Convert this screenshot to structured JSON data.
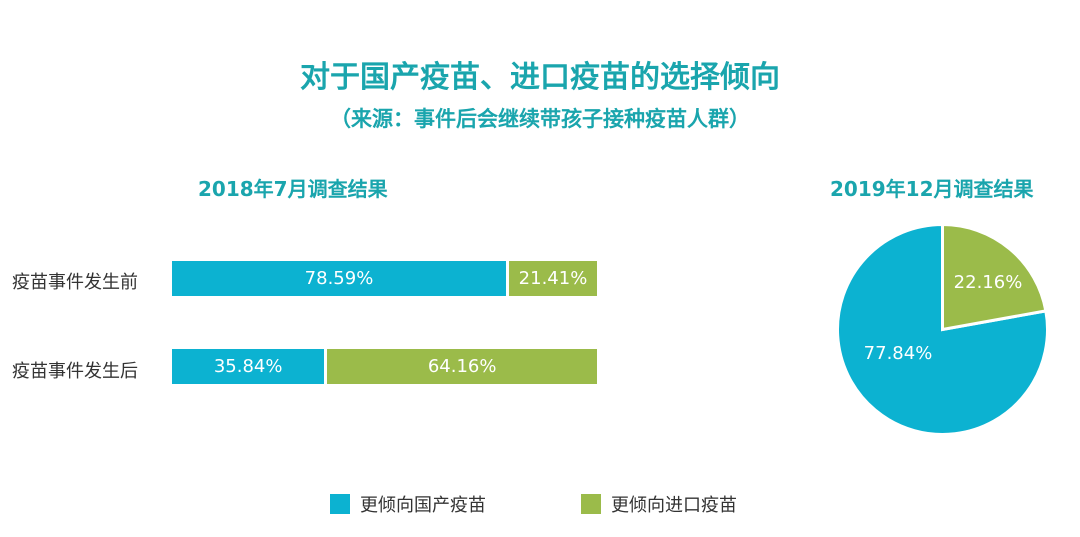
{
  "title": "对于国产疫苗、进口疫苗的选择倾向",
  "subtitle": "（来源：事件后会继续带孩子接种疫苗人群）",
  "colors": {
    "domestic": "#0cb2d1",
    "imported": "#9bbb4a",
    "title": "#1aa5ad"
  },
  "chart_data": [
    {
      "type": "bar",
      "orientation": "horizontal",
      "stacked": true,
      "title": "2018年7月调查结果",
      "categories": [
        "疫苗事件发生前",
        "疫苗事件发生后"
      ],
      "series": [
        {
          "name": "更倾向国产疫苗",
          "values": [
            78.59,
            35.84
          ],
          "labels": [
            "78.59%",
            "35.84%"
          ]
        },
        {
          "name": "更倾向进口疫苗",
          "values": [
            21.41,
            64.16
          ],
          "labels": [
            "21.41%",
            "64.16%"
          ]
        }
      ],
      "xlim": [
        0,
        100
      ]
    },
    {
      "type": "pie",
      "title": "2019年12月调查结果",
      "slices": [
        {
          "name": "更倾向国产疫苗",
          "value": 77.84,
          "label": "77.84%"
        },
        {
          "name": "更倾向进口疫苗",
          "value": 22.16,
          "label": "22.16%"
        }
      ]
    }
  ],
  "legend": [
    {
      "label": "更倾向国产疫苗"
    },
    {
      "label": "更倾向进口疫苗"
    }
  ]
}
